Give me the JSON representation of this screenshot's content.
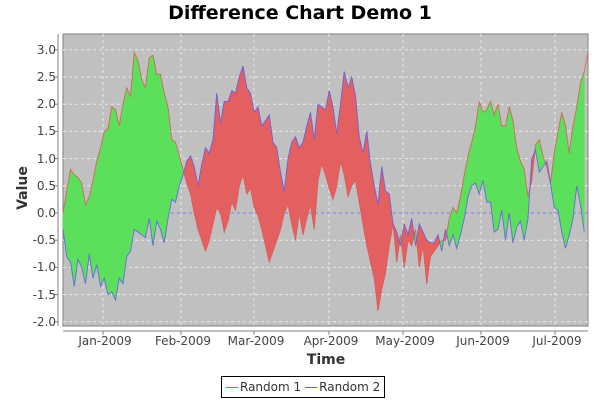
{
  "chart_data": {
    "type": "area",
    "title": "Difference Chart Demo 1",
    "xlabel": "Time",
    "ylabel": "Value",
    "ylim": [
      -2.1,
      3.3
    ],
    "yticks": [
      "3.0",
      "2.5",
      "2.0",
      "1.5",
      "1.0",
      "0.5",
      "0.0",
      "-0.5",
      "-1.0",
      "-1.5",
      "-2.0"
    ],
    "xticks": [
      "Jan-2009",
      "Feb-2009",
      "Mar-2009",
      "Apr-2009",
      "May-2009",
      "Jun-2009",
      "Jul-2009"
    ],
    "grid": true,
    "legend_position": "bottom",
    "colors": {
      "positive_fill": "#5ce05c",
      "negative_fill": "#e46060",
      "random1": "#e05a5a",
      "random2": "#6060e8",
      "plot_bg": "#c0c0c0"
    },
    "series": [
      {
        "name": "Random 1",
        "values": [
          0.0,
          0.4,
          0.8,
          0.7,
          0.65,
          0.55,
          0.15,
          0.3,
          0.6,
          0.95,
          1.2,
          1.5,
          1.55,
          1.95,
          1.9,
          1.6,
          2.0,
          2.3,
          2.15,
          2.95,
          2.8,
          2.45,
          2.3,
          2.85,
          2.9,
          2.55,
          2.55,
          2.2,
          1.95,
          1.35,
          1.3,
          1.05,
          0.8,
          0.55,
          0.35,
          0.0,
          -0.3,
          -0.5,
          -0.7,
          -0.5,
          -0.2,
          0.1,
          0.0,
          -0.35,
          -0.15,
          0.2,
          0.05,
          0.5,
          0.7,
          0.35,
          0.45,
          0.1,
          -0.05,
          -0.3,
          -0.6,
          -0.9,
          -0.7,
          -0.5,
          -0.3,
          0.0,
          0.15,
          -0.2,
          -0.5,
          0.0,
          -0.4,
          -0.1,
          0.15,
          -0.3,
          0.6,
          0.9,
          0.7,
          0.45,
          0.25,
          0.5,
          0.95,
          0.7,
          0.3,
          0.5,
          0.6,
          0.2,
          -0.2,
          -0.6,
          -0.9,
          -1.2,
          -1.8,
          -1.4,
          -1.1,
          -0.6,
          -0.2,
          -0.9,
          -0.4,
          -1.0,
          -0.5,
          -0.6,
          -0.3,
          -1.0,
          -0.6,
          -1.3,
          -0.8,
          -0.7,
          -0.6,
          -0.5,
          -0.5,
          -0.1,
          0.1,
          0.0,
          0.3,
          0.7,
          1.05,
          1.3,
          1.6,
          2.05,
          1.85,
          1.9,
          2.05,
          1.8,
          2.0,
          1.6,
          1.6,
          1.95,
          1.7,
          1.2,
          0.95,
          0.8,
          0.3,
          0.6,
          1.25,
          1.35,
          1.05,
          0.85,
          0.55,
          1.1,
          1.5,
          1.85,
          1.6,
          1.1,
          1.6,
          1.95,
          2.4,
          2.6,
          2.95
        ]
      },
      {
        "name": "Random 2",
        "values": [
          -0.3,
          -0.8,
          -0.9,
          -1.35,
          -0.85,
          -1.0,
          -1.3,
          -0.75,
          -1.2,
          -0.95,
          -1.35,
          -1.2,
          -1.5,
          -1.45,
          -1.6,
          -1.2,
          -1.3,
          -0.8,
          -0.7,
          -0.3,
          -0.35,
          -0.4,
          -0.45,
          -0.1,
          -0.6,
          -0.15,
          -0.3,
          -0.55,
          -0.1,
          0.25,
          0.2,
          0.5,
          0.7,
          0.95,
          1.05,
          0.85,
          0.5,
          0.9,
          1.2,
          1.1,
          1.35,
          2.2,
          1.65,
          2.05,
          2.05,
          2.25,
          2.2,
          2.5,
          2.7,
          2.3,
          2.2,
          1.85,
          1.95,
          1.6,
          1.7,
          1.8,
          1.3,
          1.2,
          0.75,
          0.4,
          1.0,
          1.3,
          1.4,
          1.2,
          1.3,
          1.6,
          1.85,
          1.35,
          2.0,
          1.95,
          1.9,
          2.25,
          1.95,
          1.45,
          2.0,
          2.6,
          2.3,
          2.5,
          2.15,
          1.4,
          1.1,
          1.5,
          0.9,
          0.5,
          0.15,
          0.85,
          0.4,
          0.35,
          -0.2,
          -0.35,
          -0.6,
          -0.2,
          -0.4,
          -0.1,
          -0.6,
          -0.2,
          -0.35,
          -0.5,
          -0.55,
          -0.55,
          -0.4,
          -0.7,
          -0.3,
          -0.6,
          -0.4,
          -0.65,
          -0.4,
          -0.1,
          0.3,
          0.5,
          0.55,
          0.35,
          0.6,
          0.2,
          0.2,
          -0.35,
          -0.3,
          0.05,
          -0.5,
          0.0,
          -0.55,
          -0.25,
          -0.15,
          -0.5,
          -0.1,
          1.0,
          1.15,
          0.75,
          0.85,
          0.95,
          0.55,
          0.1,
          0.05,
          -0.35,
          -0.65,
          -0.4,
          -0.1,
          0.5,
          0.15,
          -0.35
        ]
      }
    ]
  },
  "legend": {
    "items": [
      {
        "label": "Random 1"
      },
      {
        "label": "Random 2"
      }
    ]
  }
}
